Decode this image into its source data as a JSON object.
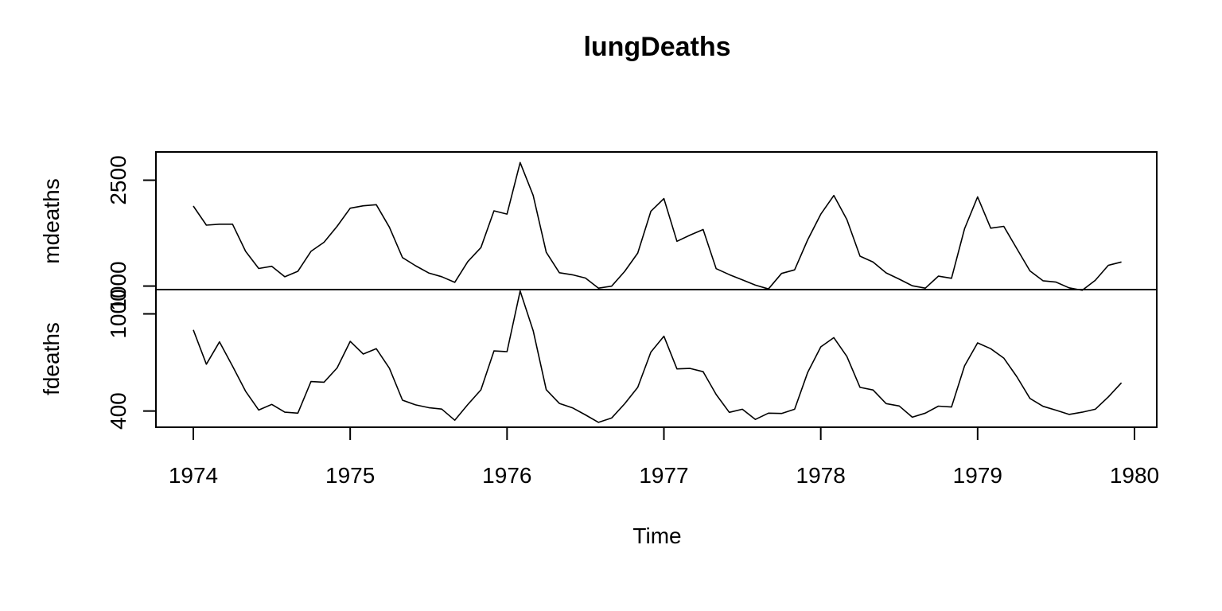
{
  "chart_data": {
    "type": "line",
    "title": "lungDeaths",
    "xlabel": "Time",
    "x_start": 1974,
    "frequency": 12,
    "xlim": [
      1974,
      1980
    ],
    "x_ticks": [
      "1974",
      "1975",
      "1976",
      "1977",
      "1978",
      "1979",
      "1980"
    ],
    "grid": false,
    "legend": "none",
    "line_color": "#000000",
    "panels": [
      {
        "name": "mdeaths",
        "ylabel": "mdeaths",
        "ylim": [
          950,
          2900
        ],
        "y_ticks": [
          "1000",
          "2500"
        ],
        "values": [
          2134,
          1863,
          1877,
          1877,
          1492,
          1249,
          1280,
          1131,
          1209,
          1492,
          1621,
          1846,
          2103,
          2137,
          2153,
          1833,
          1403,
          1288,
          1186,
          1133,
          1053,
          1347,
          1545,
          2066,
          2020,
          2750,
          2283,
          1479,
          1189,
          1160,
          1113,
          970,
          999,
          1208,
          1467,
          2059,
          2240,
          1634,
          1722,
          1801,
          1246,
          1162,
          1087,
          1013,
          959,
          1179,
          1229,
          1655,
          2019,
          2284,
          1942,
          1423,
          1340,
          1187,
          1098,
          1004,
          970,
          1140,
          1110,
          1812,
          2263,
          1820,
          1846,
          1531,
          1215,
          1075,
          1056,
          975,
          940,
          1081,
          1294,
          1341
        ]
      },
      {
        "name": "fdeaths",
        "ylabel": "fdeaths",
        "ylim": [
          300,
          1150
        ],
        "y_ticks": [
          "400",
          "1000"
        ],
        "values": [
          901,
          689,
          827,
          677,
          522,
          406,
          441,
          393,
          387,
          582,
          578,
          666,
          830,
          752,
          785,
          664,
          467,
          438,
          421,
          412,
          343,
          440,
          531,
          771,
          767,
          1141,
          896,
          532,
          447,
          420,
          376,
          330,
          357,
          445,
          546,
          764,
          862,
          660,
          663,
          643,
          502,
          392,
          411,
          348,
          387,
          385,
          411,
          638,
          796,
          853,
          737,
          546,
          530,
          446,
          431,
          362,
          387,
          430,
          425,
          679,
          821,
          785,
          727,
          612,
          478,
          429,
          405,
          379,
          393,
          411,
          487,
          574
        ]
      }
    ]
  }
}
